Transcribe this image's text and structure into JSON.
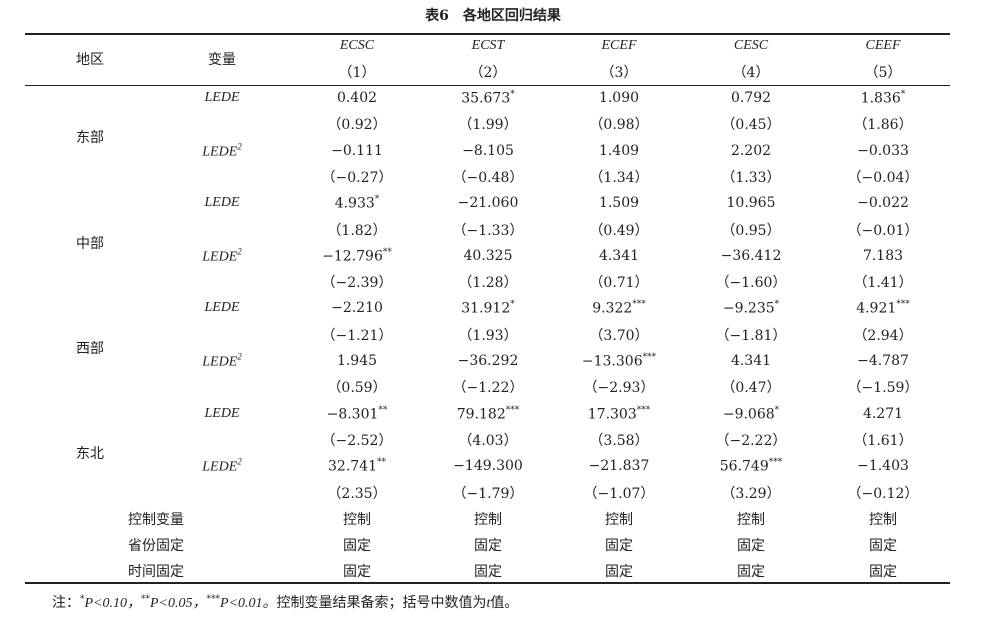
{
  "title": "表6　各地区回归结果",
  "header": {
    "region": "地区",
    "variable": "变量",
    "columns": [
      {
        "name": "ECSC",
        "index": "（1）"
      },
      {
        "name": "ECST",
        "index": "（2）"
      },
      {
        "name": "ECEF",
        "index": "（3）"
      },
      {
        "name": "CESC",
        "index": "（4）"
      },
      {
        "name": "CEEF",
        "index": "（5）"
      }
    ]
  },
  "regions": [
    {
      "name": "东部",
      "rows": [
        {
          "variable": "LEDE",
          "coefs": [
            {
              "value": "0.402"
            },
            {
              "value": "35.673",
              "stars": "*"
            },
            {
              "value": "1.090"
            },
            {
              "value": "0.792"
            },
            {
              "value": "1.836",
              "stars": "*"
            }
          ],
          "se": [
            "（0.92）",
            "（1.99）",
            "（0.98）",
            "（0.45）",
            "（1.86）"
          ]
        },
        {
          "variable": "LEDE",
          "superscript": "2",
          "coefs": [
            {
              "value": "−0.111"
            },
            {
              "value": "−8.105"
            },
            {
              "value": "1.409"
            },
            {
              "value": "2.202"
            },
            {
              "value": "−0.033"
            }
          ],
          "se": [
            "（−0.27）",
            "（−0.48）",
            "（1.34）",
            "（1.33）",
            "（−0.04）"
          ]
        }
      ]
    },
    {
      "name": "中部",
      "rows": [
        {
          "variable": "LEDE",
          "coefs": [
            {
              "value": "4.933",
              "stars": "*"
            },
            {
              "value": "−21.060"
            },
            {
              "value": "1.509"
            },
            {
              "value": "10.965"
            },
            {
              "value": "−0.022"
            }
          ],
          "se": [
            "（1.82）",
            "（−1.33）",
            "（0.49）",
            "（0.95）",
            "（−0.01）"
          ]
        },
        {
          "variable": "LEDE",
          "superscript": "2",
          "coefs": [
            {
              "value": "−12.796",
              "stars": "**"
            },
            {
              "value": "40.325"
            },
            {
              "value": "4.341"
            },
            {
              "value": "−36.412"
            },
            {
              "value": "7.183"
            }
          ],
          "se": [
            "（−2.39）",
            "（1.28）",
            "（0.71）",
            "（−1.60）",
            "（1.41）"
          ]
        }
      ]
    },
    {
      "name": "西部",
      "rows": [
        {
          "variable": "LEDE",
          "coefs": [
            {
              "value": "−2.210"
            },
            {
              "value": "31.912",
              "stars": "*"
            },
            {
              "value": "9.322",
              "stars": "***"
            },
            {
              "value": "−9.235",
              "stars": "*"
            },
            {
              "value": "4.921",
              "stars": "***"
            }
          ],
          "se": [
            "（−1.21）",
            "（1.93）",
            "（3.70）",
            "（−1.81）",
            "（2.94）"
          ]
        },
        {
          "variable": "LEDE",
          "superscript": "2",
          "coefs": [
            {
              "value": "1.945"
            },
            {
              "value": "−36.292"
            },
            {
              "value": "−13.306",
              "stars": "***"
            },
            {
              "value": "4.341"
            },
            {
              "value": "−4.787"
            }
          ],
          "se": [
            "（0.59）",
            "（−1.22）",
            "（−2.93）",
            "（0.47）",
            "（−1.59）"
          ]
        }
      ]
    },
    {
      "name": "东北",
      "rows": [
        {
          "variable": "LEDE",
          "coefs": [
            {
              "value": "−8.301",
              "stars": "**"
            },
            {
              "value": "79.182",
              "stars": "***"
            },
            {
              "value": "17.303",
              "stars": "***"
            },
            {
              "value": "−9.068",
              "stars": "*"
            },
            {
              "value": "4.271"
            }
          ],
          "se": [
            "（−2.52）",
            "（4.03）",
            "（3.58）",
            "（−2.22）",
            "（1.61）"
          ]
        },
        {
          "variable": "LEDE",
          "superscript": "2",
          "coefs": [
            {
              "value": "32.741",
              "stars": "**"
            },
            {
              "value": "−149.300"
            },
            {
              "value": "−21.837"
            },
            {
              "value": "56.749",
              "stars": "***"
            },
            {
              "value": "−1.403"
            }
          ],
          "se": [
            "（2.35）",
            "（−1.79）",
            "（−1.07）",
            "（3.29）",
            "（−0.12）"
          ]
        }
      ]
    }
  ],
  "controls": [
    {
      "label": "控制变量",
      "cells": [
        "控制",
        "控制",
        "控制",
        "控制",
        "控制"
      ]
    },
    {
      "label": "省份固定",
      "cells": [
        "固定",
        "固定",
        "固定",
        "固定",
        "固定"
      ]
    },
    {
      "label": "时间固定",
      "cells": [
        "固定",
        "固定",
        "固定",
        "固定",
        "固定"
      ]
    }
  ],
  "note": {
    "lead": "注：",
    "levels": [
      {
        "stars": "*",
        "p": "P<0.10，"
      },
      {
        "stars": "**",
        "p": "P<0.05，"
      },
      {
        "stars": "***",
        "p": "P<0.01。"
      }
    ],
    "tail": "控制变量结果备索；括号中数值为",
    "t": "t",
    "end": "值。"
  }
}
